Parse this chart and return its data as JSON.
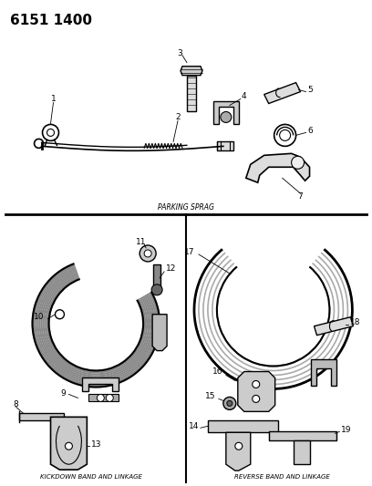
{
  "title_part": "6151 1400",
  "bg_color": "#ffffff",
  "line_color": "#000000",
  "text_color": "#000000",
  "section1_label": "PARKING SPRAG",
  "section2_label": "KICKDOWN BAND AND LINKAGE",
  "section3_label": "REVERSE BAND AND LINKAGE",
  "fig_w": 4.08,
  "fig_h": 5.33,
  "dpi": 100
}
